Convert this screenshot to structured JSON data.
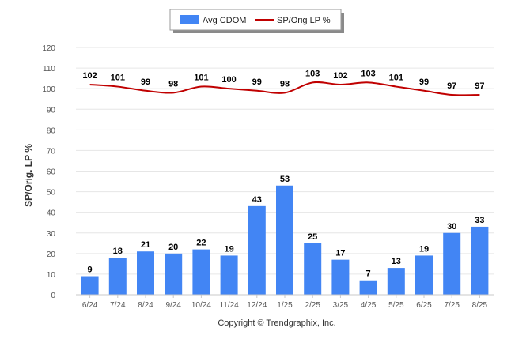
{
  "chart_data": {
    "type": "bar",
    "categories": [
      "6/24",
      "7/24",
      "8/24",
      "9/24",
      "10/24",
      "11/24",
      "12/24",
      "1/25",
      "2/25",
      "3/25",
      "4/25",
      "5/25",
      "6/25",
      "7/25",
      "8/25"
    ],
    "series": [
      {
        "name": "Avg CDOM",
        "type": "bar",
        "color": "#4285f4",
        "values": [
          9,
          18,
          21,
          20,
          22,
          19,
          43,
          53,
          25,
          17,
          7,
          13,
          19,
          30,
          33
        ]
      },
      {
        "name": "SP/Orig LP %",
        "type": "line",
        "color": "#c00000",
        "values": [
          102,
          101,
          99,
          98,
          101,
          100,
          99,
          98,
          103,
          102,
          103,
          101,
          99,
          97,
          97
        ]
      }
    ],
    "ylabel": "SP/Orig. LP %",
    "xlabel": "",
    "ylim": [
      0,
      120
    ],
    "yticks": [
      0,
      10,
      20,
      30,
      40,
      50,
      60,
      70,
      80,
      90,
      100,
      110,
      120
    ],
    "grid": true,
    "legend": "top-center",
    "data_labels": true
  },
  "footer": {
    "copyright": "Copyright © Trendgraphix, Inc."
  }
}
